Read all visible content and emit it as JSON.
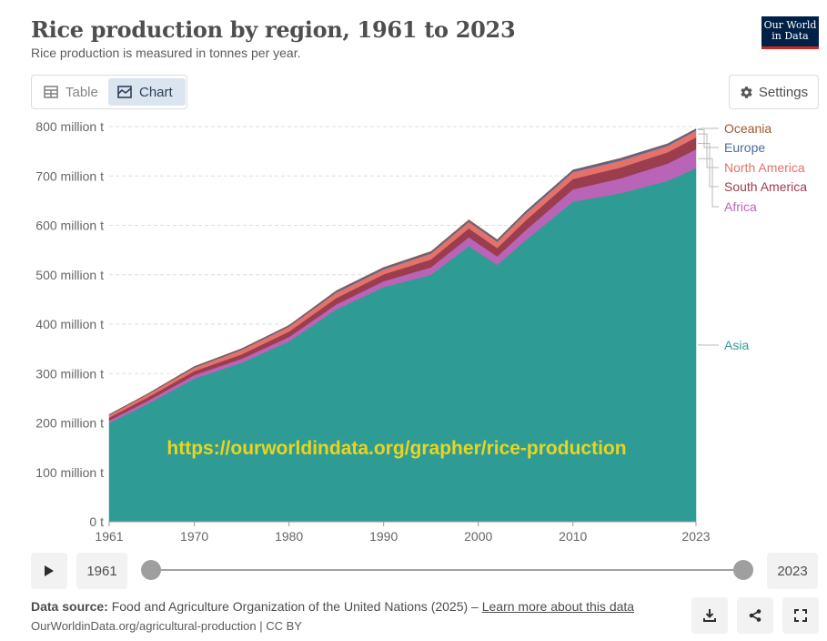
{
  "header": {
    "title": "Rice production by region, 1961 to 2023",
    "subtitle": "Rice production is measured in tonnes per year.",
    "logo_line1": "Our World",
    "logo_line2": "in Data"
  },
  "tabs": {
    "table_label": "Table",
    "chart_label": "Chart",
    "settings_label": "Settings"
  },
  "colors": {
    "asia": "#2e9c95",
    "africa": "#b964b6",
    "south_america": "#9a3d4f",
    "north_america": "#e4726a",
    "europe": "#4c6a9c",
    "oceania": "#a2562e",
    "watermark": "#e9d51e"
  },
  "watermark": "https://ourworldindata.org/grapher/rice-production",
  "timeline": {
    "start_year": "1961",
    "end_year": "2023",
    "play_icon": "play-icon"
  },
  "footer": {
    "source_label": "Data source:",
    "source_text": "Food and Agriculture Organization of the United Nations (2025) –",
    "learn_more": "Learn more about this data",
    "line2": "OurWorldinData.org/agricultural-production | CC BY"
  },
  "chart_data": {
    "type": "area",
    "stacked": true,
    "title": "Rice production by region, 1961 to 2023",
    "ylabel": "",
    "ylim": [
      0,
      800
    ],
    "y_ticks": [
      0,
      100,
      200,
      300,
      400,
      500,
      600,
      700,
      800
    ],
    "y_tick_labels": [
      "0 t",
      "100 million t",
      "200 million t",
      "300 million t",
      "400 million t",
      "500 million t",
      "600 million t",
      "700 million t",
      "800 million t"
    ],
    "x_ticks": [
      1961,
      1970,
      1980,
      1990,
      2000,
      2010,
      2023
    ],
    "x_tick_labels": [
      "1961",
      "1970",
      "1980",
      "1990",
      "2000",
      "2010",
      "2023"
    ],
    "x_range": [
      1961,
      2023
    ],
    "grid": true,
    "x": [
      1961,
      1965,
      1970,
      1975,
      1980,
      1985,
      1990,
      1995,
      1999,
      2002,
      2005,
      2010,
      2015,
      2020,
      2023
    ],
    "series": [
      {
        "name": "Asia",
        "values": [
          200,
          238,
          290,
          322,
          365,
          430,
          475,
          500,
          558,
          520,
          570,
          648,
          665,
          690,
          716
        ]
      },
      {
        "name": "Africa",
        "values": [
          5,
          6,
          7,
          8,
          9,
          10,
          12,
          15,
          18,
          17,
          20,
          25,
          30,
          35,
          38
        ]
      },
      {
        "name": "South America",
        "values": [
          6,
          7,
          8,
          9,
          11,
          13,
          14,
          16,
          18,
          17,
          20,
          21,
          22,
          23,
          24
        ]
      },
      {
        "name": "North America",
        "values": [
          5,
          6,
          7,
          9,
          10,
          11,
          10,
          12,
          13,
          13,
          14,
          14,
          14,
          13,
          14
        ]
      },
      {
        "name": "Europe",
        "values": [
          1,
          1,
          2,
          2,
          2,
          3,
          3,
          3,
          3,
          3,
          4,
          4,
          4,
          4,
          3
        ]
      },
      {
        "name": "Oceania",
        "values": [
          0.2,
          0.3,
          0.4,
          0.5,
          0.7,
          0.8,
          0.9,
          1.2,
          1.4,
          1.2,
          0.4,
          0.2,
          0.7,
          0.1,
          0.5
        ]
      }
    ],
    "legend": [
      "Oceania",
      "Europe",
      "North America",
      "South America",
      "Africa",
      "Asia"
    ]
  }
}
